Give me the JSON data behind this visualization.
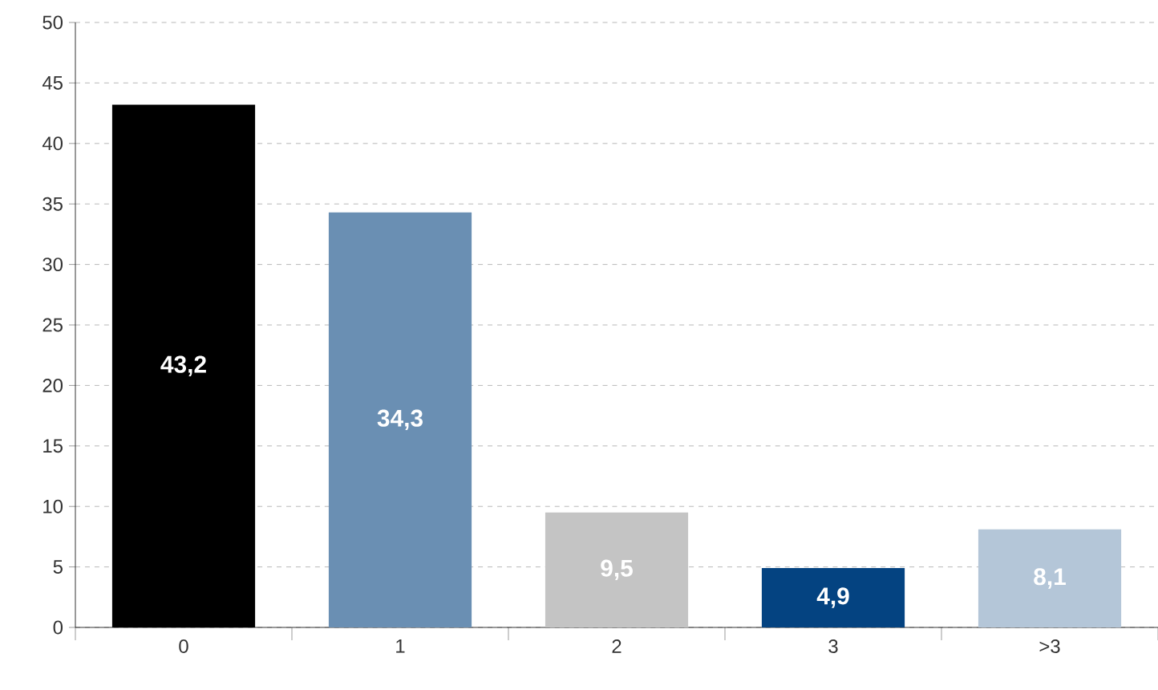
{
  "chart_data": {
    "type": "bar",
    "categories": [
      "0",
      "1",
      "2",
      "3",
      ">3"
    ],
    "values": [
      43.2,
      34.3,
      9.5,
      4.9,
      8.1
    ],
    "colors": [
      "#000000",
      "#6a8fb3",
      "#c4c4c4",
      "#044381",
      "#b4c6d8"
    ],
    "value_labels": [
      "43,2",
      "34,3",
      "9,5",
      "4,9",
      "8,1"
    ],
    "ylim": [
      0,
      50
    ],
    "yticks": [
      0,
      5,
      10,
      15,
      20,
      25,
      30,
      35,
      40,
      45,
      50
    ],
    "grid": "y"
  }
}
